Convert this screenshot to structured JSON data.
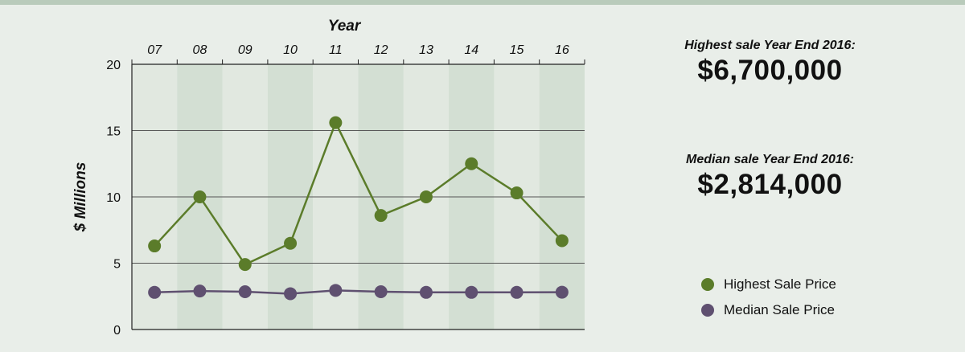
{
  "colors": {
    "background": "#e9eee9",
    "band_light": "#e1e8e0",
    "band_dark": "#d3dfd3",
    "highest": "#5b7c2a",
    "median": "#5f5070",
    "gridline": "#555555"
  },
  "stats": {
    "highest_label": "Highest sale Year End 2016:",
    "highest_value": "$6,700,000",
    "median_label": "Median sale Year End 2016:",
    "median_value": "$2,814,000"
  },
  "legend": {
    "highest": "Highest Sale Price",
    "median": "Median Sale Price"
  },
  "chart_data": {
    "type": "line",
    "xlabel": "Year",
    "ylabel": "$ Millions",
    "x_axis_position": "top",
    "categories": [
      "07",
      "08",
      "09",
      "10",
      "11",
      "12",
      "13",
      "14",
      "15",
      "16"
    ],
    "y_ticks": [
      "0",
      "5",
      "10",
      "15",
      "20"
    ],
    "ylim": [
      0,
      20
    ],
    "grid": true,
    "series": [
      {
        "name": "Highest Sale Price",
        "values": [
          6.3,
          10.0,
          4.9,
          6.5,
          15.6,
          8.6,
          10.0,
          12.5,
          10.3,
          6.7
        ]
      },
      {
        "name": "Median Sale Price",
        "values": [
          2.8,
          2.9,
          2.85,
          2.7,
          2.95,
          2.85,
          2.8,
          2.8,
          2.8,
          2.814
        ]
      }
    ]
  }
}
